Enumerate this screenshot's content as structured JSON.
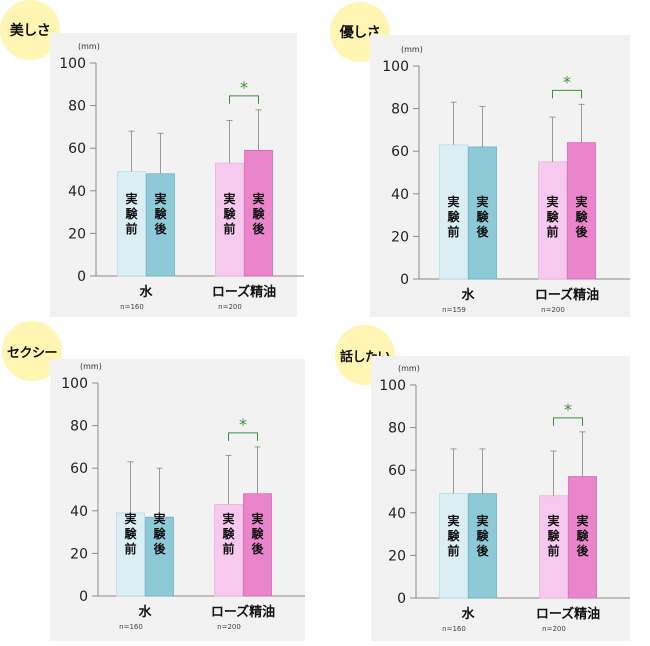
{
  "colors": {
    "water_before": "#daeef4",
    "water_after": "#8ec9d8",
    "rose_before": "#f8c9ef",
    "rose_after": "#ea85cc",
    "plot_bg": "#f2f2f2",
    "star": "#3e8e3e",
    "badge": "#fff6b3"
  },
  "chart_data": [
    {
      "type": "bar",
      "title": "美しさ",
      "unit": "(mm)",
      "ylim": [
        0,
        100
      ],
      "yticks": [
        "0",
        "20",
        "40",
        "60",
        "80",
        "100"
      ],
      "categories": [
        "水",
        "ローズ精油"
      ],
      "n_labels": [
        "n=160",
        "n=200"
      ],
      "bar_labels": [
        "実験前",
        "実験後"
      ],
      "series": [
        {
          "name": "実験前",
          "values": [
            49,
            53
          ],
          "errors": [
            19,
            20
          ]
        },
        {
          "name": "実験後",
          "values": [
            48,
            59
          ],
          "errors": [
            19,
            19
          ]
        }
      ],
      "significance": "*"
    },
    {
      "type": "bar",
      "title": "優しさ",
      "unit": "(mm)",
      "ylim": [
        0,
        100
      ],
      "yticks": [
        "0",
        "20",
        "40",
        "60",
        "80",
        "100"
      ],
      "categories": [
        "水",
        "ローズ精油"
      ],
      "n_labels": [
        "n=159",
        "n=200"
      ],
      "bar_labels": [
        "実験前",
        "実験後"
      ],
      "series": [
        {
          "name": "実験前",
          "values": [
            63,
            55
          ],
          "errors": [
            20,
            21
          ]
        },
        {
          "name": "実験後",
          "values": [
            62,
            64
          ],
          "errors": [
            19,
            18
          ]
        }
      ],
      "significance": "*"
    },
    {
      "type": "bar",
      "title": "セクシー",
      "unit": "(mm)",
      "ylim": [
        0,
        100
      ],
      "yticks": [
        "0",
        "20",
        "40",
        "60",
        "80",
        "100"
      ],
      "categories": [
        "水",
        "ローズ精油"
      ],
      "n_labels": [
        "n=160",
        "n=200"
      ],
      "bar_labels": [
        "実験前",
        "実験後"
      ],
      "series": [
        {
          "name": "実験前",
          "values": [
            39,
            43
          ],
          "errors": [
            24,
            23
          ]
        },
        {
          "name": "実験後",
          "values": [
            37,
            48
          ],
          "errors": [
            23,
            22
          ]
        }
      ],
      "significance": "*"
    },
    {
      "type": "bar",
      "title": "話したい",
      "unit": "(mm)",
      "ylim": [
        0,
        100
      ],
      "yticks": [
        "0",
        "20",
        "40",
        "60",
        "80",
        "100"
      ],
      "categories": [
        "水",
        "ローズ精油"
      ],
      "n_labels": [
        "n=160",
        "n=200"
      ],
      "bar_labels": [
        "実験前",
        "実験後"
      ],
      "series": [
        {
          "name": "実験前",
          "values": [
            49,
            48
          ],
          "errors": [
            21,
            21
          ]
        },
        {
          "name": "実験後",
          "values": [
            49,
            57
          ],
          "errors": [
            21,
            21
          ]
        }
      ],
      "significance": "*"
    }
  ]
}
